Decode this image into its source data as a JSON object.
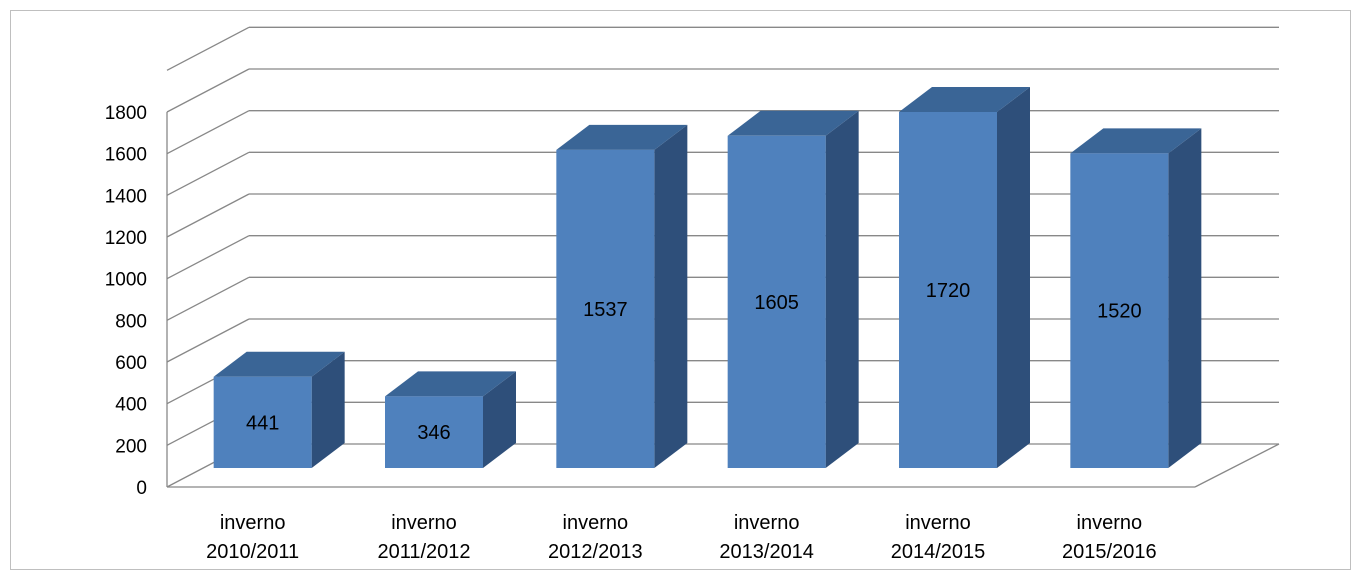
{
  "chart_data": {
    "type": "bar",
    "title": "",
    "xlabel": "",
    "ylabel": "",
    "categories": [
      [
        "inverno",
        "2010/2011"
      ],
      [
        "inverno",
        "2011/2012"
      ],
      [
        "inverno",
        "2012/2013"
      ],
      [
        "inverno",
        "2013/2014"
      ],
      [
        "inverno",
        "2014/2015"
      ],
      [
        "inverno",
        "2015/2016"
      ]
    ],
    "values": [
      441,
      346,
      1537,
      1605,
      1720,
      1520
    ],
    "data_labels": [
      "441",
      "346",
      "1537",
      "1605",
      "1720",
      "1520"
    ],
    "ylim": [
      0,
      1800
    ],
    "yticks": [
      "0",
      "200",
      "400",
      "600",
      "800",
      "1000",
      "1200",
      "1400",
      "1600",
      "1800"
    ],
    "three_d": true,
    "grid": true,
    "legend": "none",
    "colors": {
      "bar_front": "#4f81bd",
      "bar_top": "#3a6596",
      "bar_side": "#2e4f7a",
      "grid": "#888888",
      "border": "#bfbfbf"
    }
  }
}
